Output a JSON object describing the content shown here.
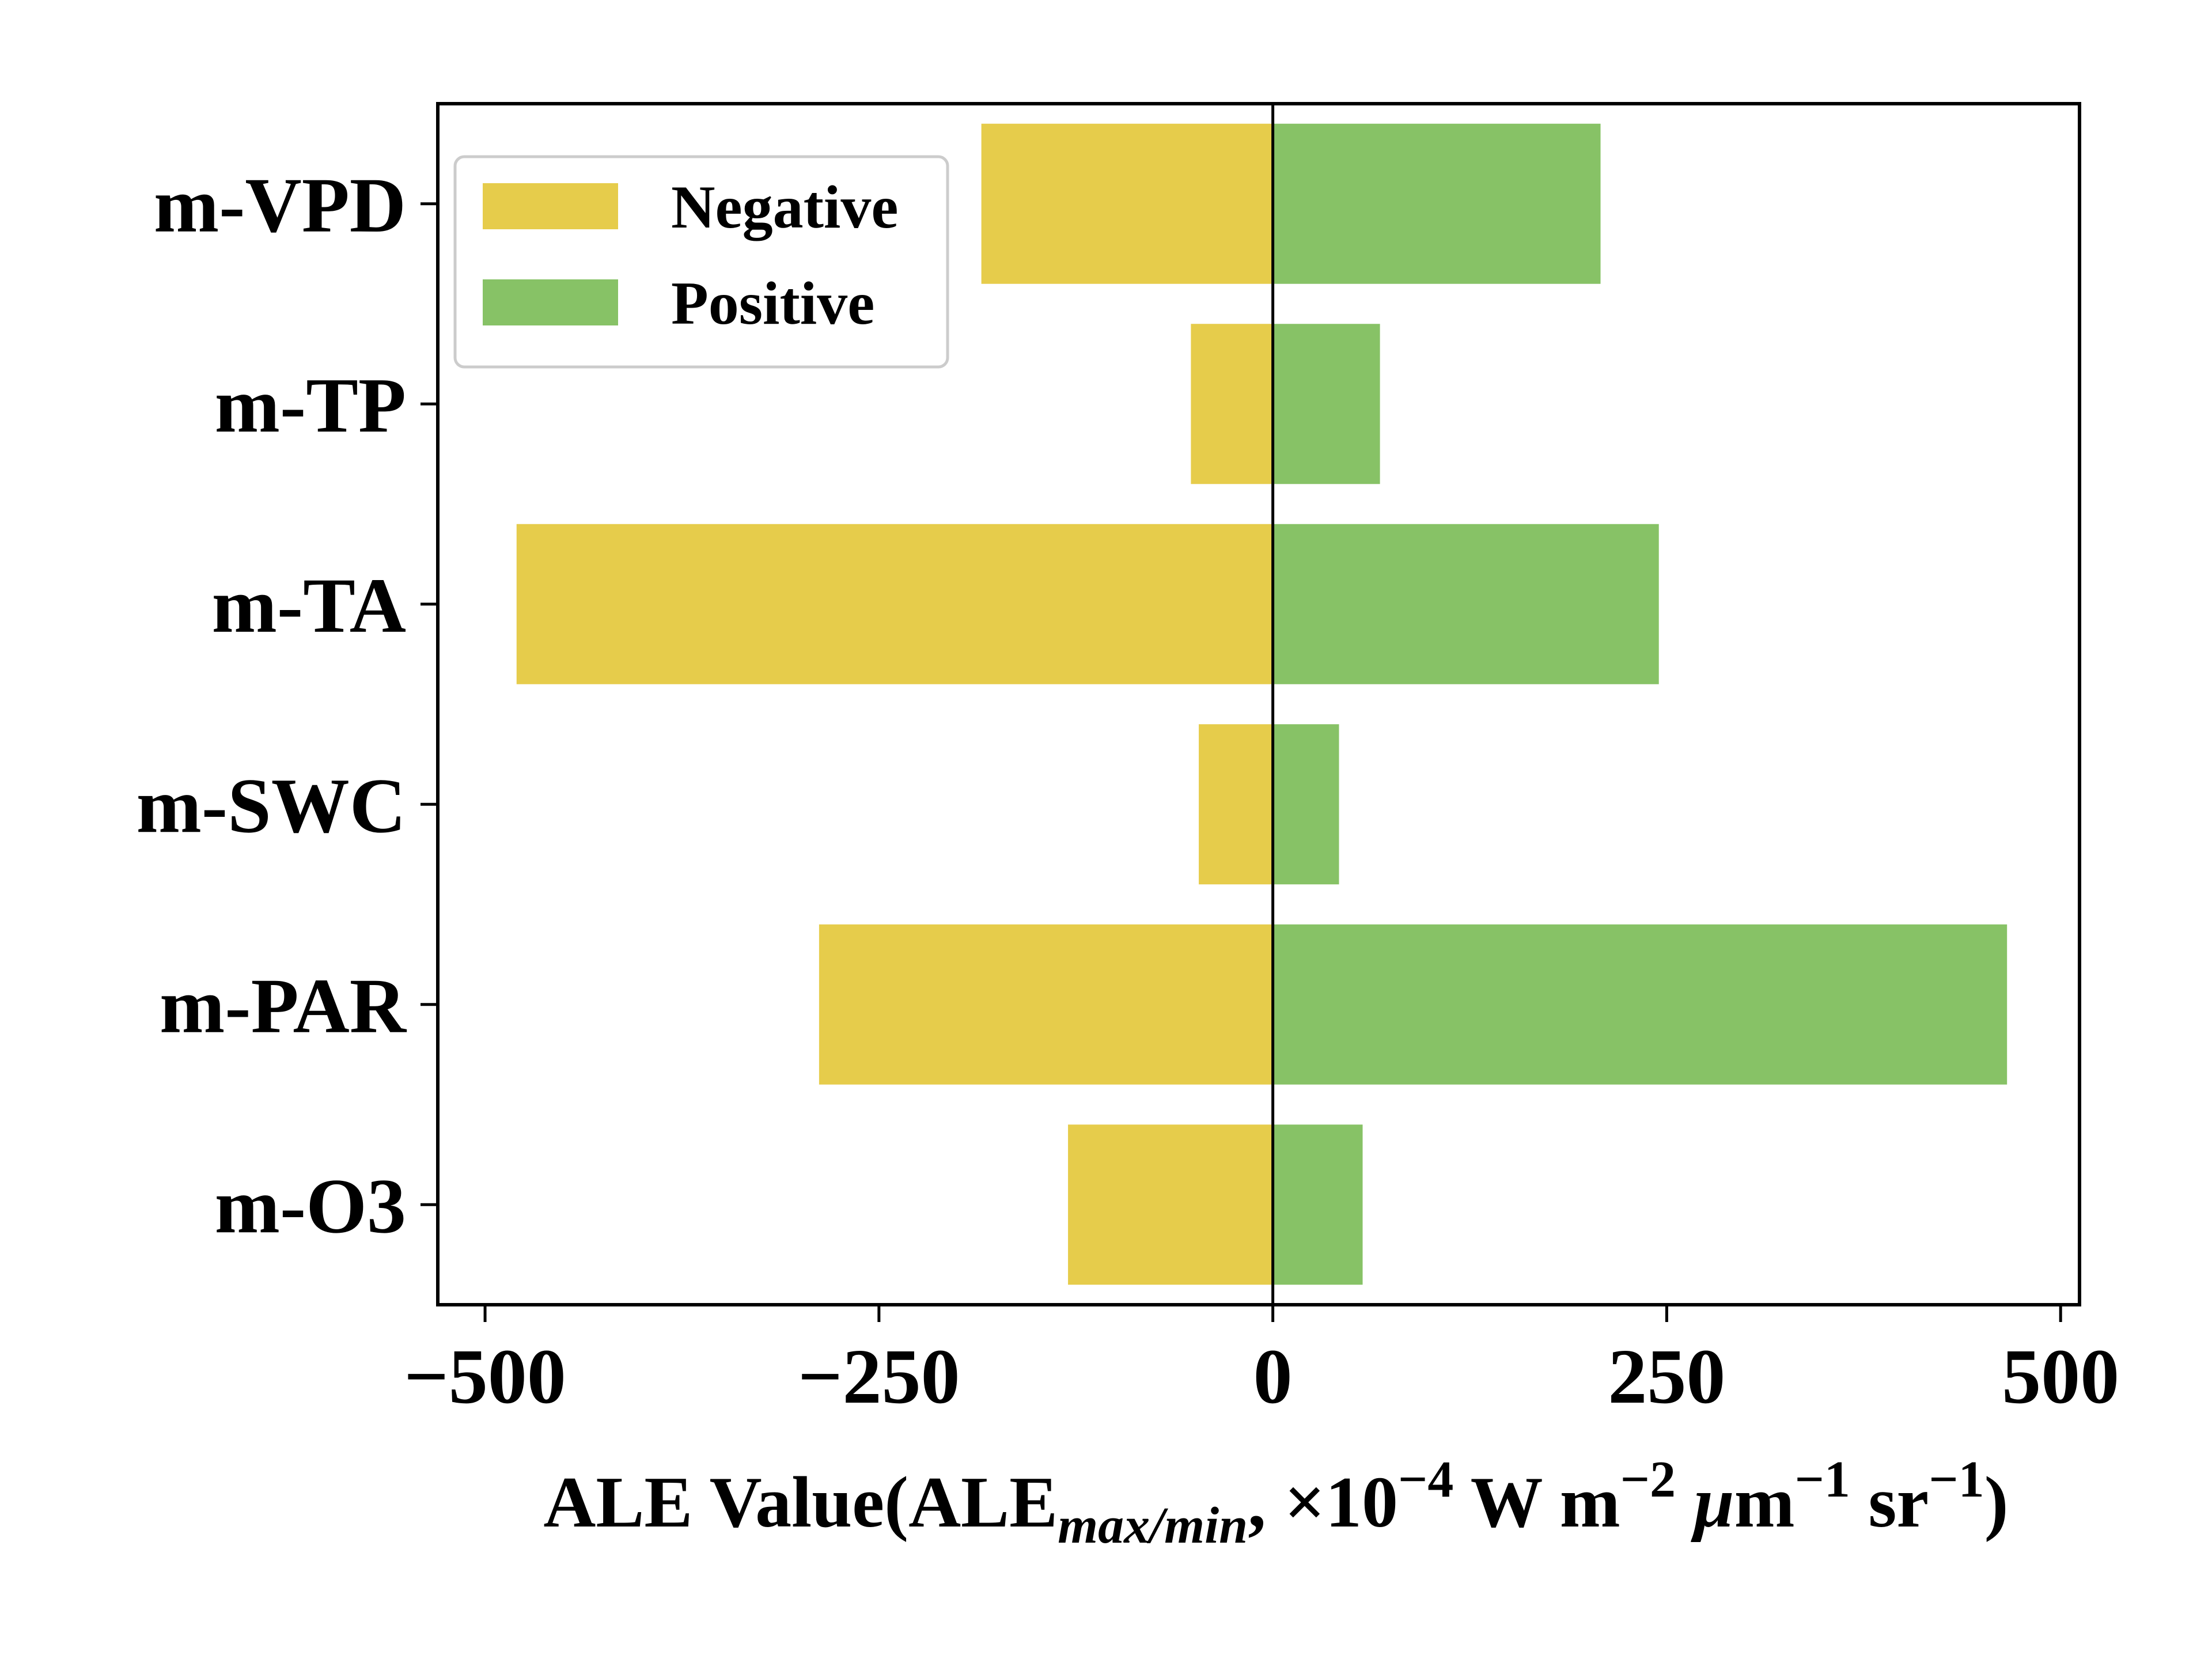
{
  "chart_data": {
    "type": "bar",
    "orientation": "horizontal",
    "categories": [
      "m-VPD",
      "m-TP",
      "m-TA",
      "m-SWC",
      "m-PAR",
      "m-O3"
    ],
    "series": [
      {
        "name": "Negative",
        "color": "#e6cc4b",
        "values": [
          -185,
          -52,
          -480,
          -47,
          -288,
          -130
        ]
      },
      {
        "name": "Positive",
        "color": "#87c266",
        "values": [
          208,
          68,
          245,
          42,
          466,
          57
        ]
      }
    ],
    "xticks": [
      -500,
      -250,
      0,
      250,
      500
    ],
    "xtick_labels": [
      "−500",
      "−250",
      "0",
      "250",
      "500"
    ],
    "xlim": [
      -530,
      512
    ],
    "xlabel": {
      "main": "ALE Value(ALE",
      "sub": "max/min",
      "after_sub": ", ×10",
      "exp1": "−4",
      "w_m": " W m",
      "exp2": "−2",
      "mu": " μ",
      "m": "m",
      "exp3": "−1",
      "sr": " sr",
      "exp4": "−1",
      "close": ")"
    },
    "legend_position": "upper-left",
    "zero_line": true,
    "grid": false
  }
}
